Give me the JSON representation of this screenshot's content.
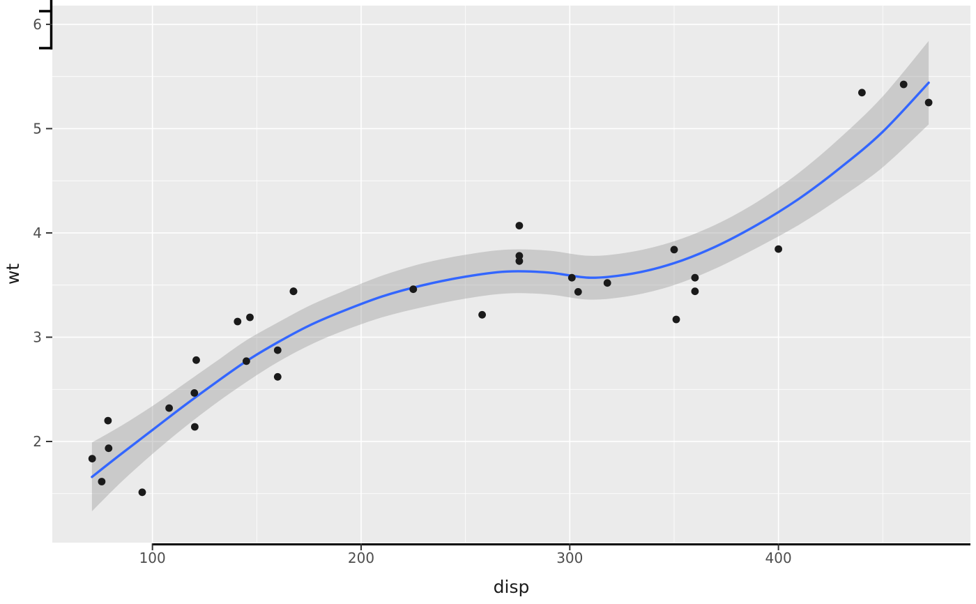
{
  "chart_data": {
    "type": "scatter",
    "title": "",
    "xlabel": "disp",
    "ylabel": "wt",
    "xlim": [
      52,
      492
    ],
    "ylim": [
      1.03,
      6.18
    ],
    "x_ticks": [
      100,
      200,
      300,
      400
    ],
    "x_minor_ticks": [
      150,
      250,
      350,
      450
    ],
    "y_ticks": [
      2,
      3,
      4,
      5,
      6
    ],
    "y_minor_ticks": [
      1.5,
      2.5,
      3.5,
      4.5,
      5.5
    ],
    "grid": "major+minor",
    "legend": "none",
    "points": [
      [
        160,
        2.62
      ],
      [
        160,
        2.875
      ],
      [
        108,
        2.32
      ],
      [
        258,
        3.215
      ],
      [
        360,
        3.44
      ],
      [
        225,
        3.46
      ],
      [
        360,
        3.57
      ],
      [
        146.7,
        3.19
      ],
      [
        140.8,
        3.15
      ],
      [
        167.6,
        3.44
      ],
      [
        167.6,
        3.44
      ],
      [
        275.8,
        4.07
      ],
      [
        275.8,
        3.73
      ],
      [
        275.8,
        3.78
      ],
      [
        472,
        5.25
      ],
      [
        460,
        5.424
      ],
      [
        440,
        5.345
      ],
      [
        78.7,
        2.2
      ],
      [
        75.7,
        1.615
      ],
      [
        71.1,
        1.835
      ],
      [
        120.1,
        2.465
      ],
      [
        318,
        3.52
      ],
      [
        304,
        3.435
      ],
      [
        350,
        3.84
      ],
      [
        400,
        3.845
      ],
      [
        79,
        1.935
      ],
      [
        120.3,
        2.14
      ],
      [
        95.1,
        1.513
      ],
      [
        351,
        3.17
      ],
      [
        145,
        2.77
      ],
      [
        301,
        3.57
      ],
      [
        121,
        2.78
      ]
    ],
    "smooth": {
      "name": "loess-fit-with-confidence-band",
      "x": [
        71,
        85,
        100,
        115,
        130,
        145,
        160,
        175,
        190,
        210,
        230,
        250,
        270,
        290,
        310,
        330,
        350,
        370,
        390,
        410,
        430,
        450,
        472
      ],
      "y": [
        1.66,
        1.88,
        2.11,
        2.34,
        2.56,
        2.77,
        2.95,
        3.11,
        3.24,
        3.39,
        3.5,
        3.58,
        3.63,
        3.62,
        3.57,
        3.61,
        3.71,
        3.87,
        4.08,
        4.33,
        4.63,
        4.97,
        5.44
      ],
      "ymin": [
        1.33,
        1.61,
        1.88,
        2.13,
        2.36,
        2.57,
        2.76,
        2.92,
        3.05,
        3.19,
        3.29,
        3.37,
        3.42,
        3.41,
        3.36,
        3.4,
        3.5,
        3.66,
        3.86,
        4.08,
        4.34,
        4.63,
        5.04
      ],
      "ymax": [
        1.99,
        2.15,
        2.34,
        2.55,
        2.76,
        2.97,
        3.14,
        3.3,
        3.43,
        3.59,
        3.71,
        3.79,
        3.84,
        3.83,
        3.78,
        3.82,
        3.92,
        4.08,
        4.3,
        4.58,
        4.92,
        5.31,
        5.84
      ]
    },
    "colors": {
      "panel_bg": "#EBEBEB",
      "grid_major": "#FFFFFF",
      "grid_minor": "#FFFFFF",
      "point": "#1A1A1A",
      "smooth_line": "#3366FF",
      "ribbon": "#999999",
      "ribbon_opacity": 0.4,
      "tick_mark": "#333333",
      "tick_label": "#4D4D4D",
      "axis_title": "#1A1A1A",
      "axis_line": "#000000"
    }
  }
}
